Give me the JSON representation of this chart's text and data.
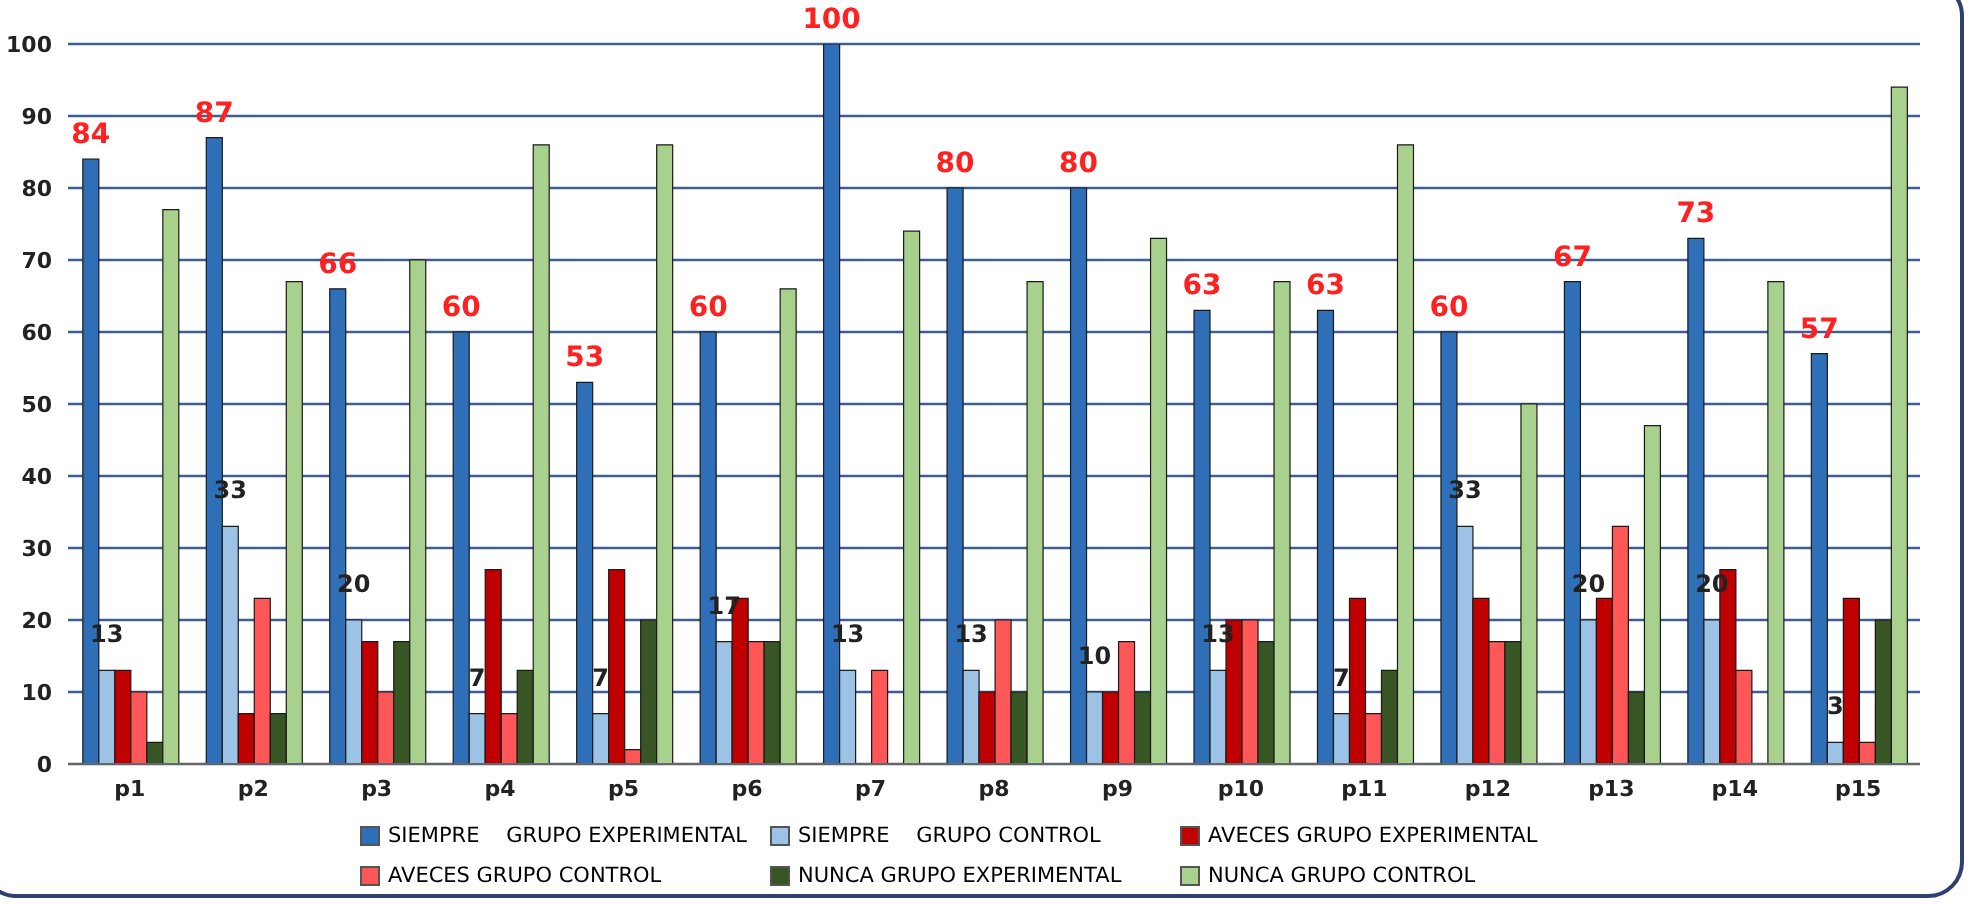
{
  "chart_data": {
    "type": "bar",
    "categories": [
      "p1",
      "p2",
      "p3",
      "p4",
      "p5",
      "p6",
      "p7",
      "p8",
      "p9",
      "p10",
      "p11",
      "p12",
      "p13",
      "p14",
      "p15"
    ],
    "series": [
      {
        "name": "SIEMPRE    GRUPO EXPERIMENTAL",
        "color": "#2e6fb7",
        "values": [
          84,
          87,
          66,
          60,
          53,
          60,
          100,
          80,
          80,
          63,
          63,
          60,
          67,
          73,
          57
        ],
        "value_labels": [
          "84",
          "87",
          "66",
          "60",
          "53",
          "60",
          "100",
          "80",
          "80",
          "63",
          "63",
          "60",
          "67",
          "73",
          "57"
        ]
      },
      {
        "name": "SIEMPRE    GRUPO CONTROL",
        "color": "#9cc2e5",
        "values": [
          13,
          33,
          20,
          7,
          7,
          17,
          13,
          13,
          10,
          13,
          7,
          33,
          20,
          20,
          3
        ],
        "value_labels": [
          "13",
          "33",
          "20",
          "7",
          "7",
          "17",
          "13",
          "13",
          "10",
          "13",
          "7",
          "33",
          "20",
          "20",
          "3"
        ]
      },
      {
        "name": "AVECES GRUPO EXPERIMENTAL",
        "color": "#c00000",
        "values": [
          13,
          7,
          17,
          27,
          27,
          23,
          0,
          10,
          10,
          20,
          23,
          23,
          23,
          27,
          23
        ]
      },
      {
        "name": "AVECES GRUPO CONTROL",
        "color": "#ff5757",
        "values": [
          10,
          23,
          10,
          7,
          2,
          17,
          13,
          20,
          17,
          20,
          7,
          17,
          33,
          13,
          3
        ]
      },
      {
        "name": "NUNCA GRUPO EXPERIMENTAL",
        "color": "#375623",
        "values": [
          3,
          7,
          17,
          13,
          20,
          17,
          0,
          10,
          10,
          17,
          13,
          17,
          10,
          0,
          20
        ]
      },
      {
        "name": "NUNCA GRUPO CONTROL",
        "color": "#a9d18e",
        "values": [
          77,
          67,
          70,
          86,
          86,
          66,
          74,
          67,
          73,
          67,
          86,
          50,
          47,
          67,
          94
        ]
      }
    ],
    "ylim": [
      0,
      100
    ],
    "yticks": [
      0,
      10,
      20,
      30,
      40,
      50,
      60,
      70,
      80,
      90,
      100
    ],
    "grid": "y",
    "legend": "bottom"
  }
}
